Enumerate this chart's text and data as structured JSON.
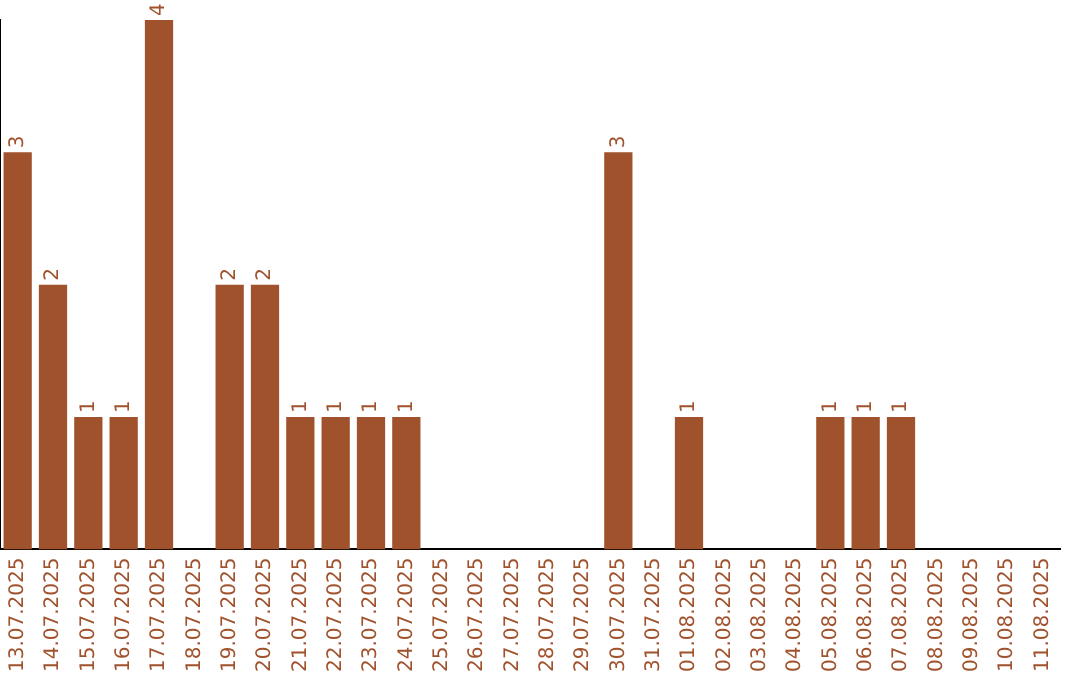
{
  "chart_data": {
    "type": "bar",
    "categories": [
      "13.07.2025",
      "14.07.2025",
      "15.07.2025",
      "16.07.2025",
      "17.07.2025",
      "18.07.2025",
      "19.07.2025",
      "20.07.2025",
      "21.07.2025",
      "22.07.2025",
      "23.07.2025",
      "24.07.2025",
      "25.07.2025",
      "26.07.2025",
      "27.07.2025",
      "28.07.2025",
      "29.07.2025",
      "30.07.2025",
      "31.07.2025",
      "01.08.2025",
      "02.08.2025",
      "03.08.2025",
      "04.08.2025",
      "05.08.2025",
      "06.08.2025",
      "07.08.2025",
      "08.08.2025",
      "09.08.2025",
      "10.08.2025",
      "11.08.2025"
    ],
    "values": [
      3,
      2,
      1,
      1,
      4,
      0,
      2,
      2,
      1,
      1,
      1,
      1,
      0,
      0,
      0,
      0,
      0,
      3,
      0,
      1,
      0,
      0,
      0,
      1,
      1,
      1,
      0,
      0,
      0,
      0
    ],
    "value_labels": [
      "3",
      "2",
      "1",
      "1",
      "4",
      null,
      "2",
      "2",
      "1",
      "1",
      "1",
      "1",
      null,
      null,
      null,
      null,
      null,
      "3",
      null,
      "1",
      null,
      null,
      null,
      "1",
      "1",
      "1",
      null,
      null,
      null,
      null
    ],
    "color": "#a0522d",
    "tick_labels": "x",
    "grid": false,
    "legend": false
  }
}
